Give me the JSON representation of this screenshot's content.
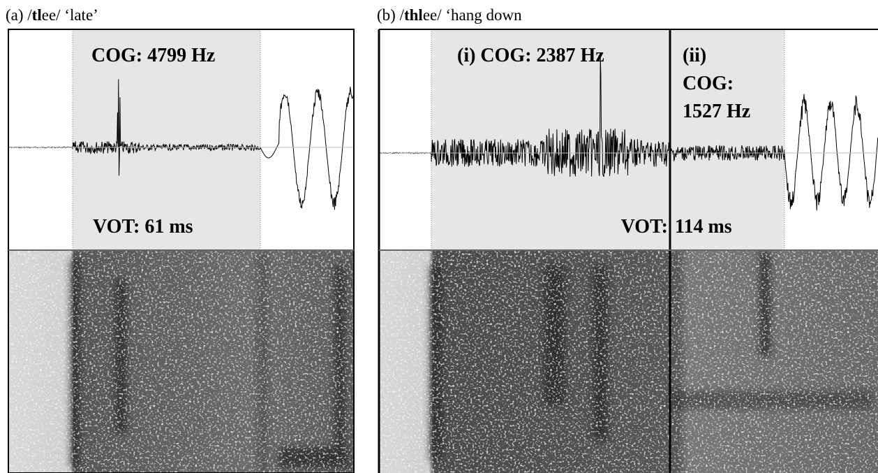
{
  "panels": [
    {
      "title": {
        "prefix": "(a) /",
        "bold": "tl",
        "suffix": "ee/ ‘late’"
      },
      "annotations": [
        "COG: 4799 Hz",
        "VOT: 61 ms"
      ]
    },
    {
      "title": {
        "prefix": "(b) /",
        "bold": "thl",
        "suffix": "ee/ ‘hang down"
      },
      "annotations": [
        "(i) COG: 2387 Hz",
        "(ii)",
        "COG:",
        "1527 Hz",
        "VOT:",
        "114 ms"
      ]
    }
  ]
}
